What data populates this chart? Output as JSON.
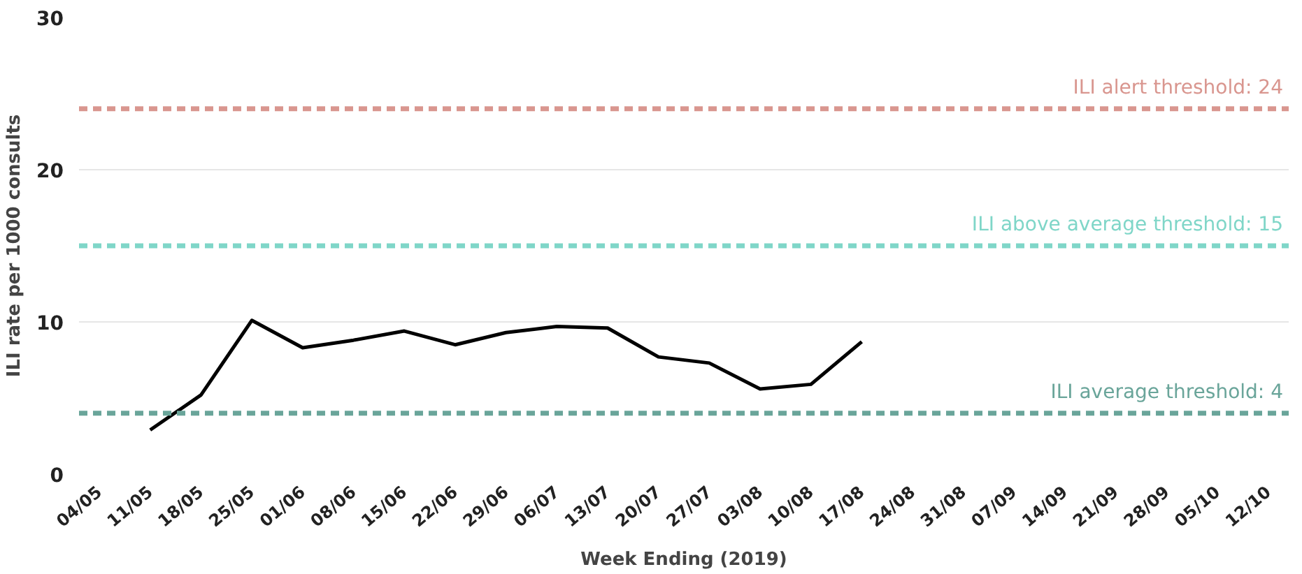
{
  "chart_data": {
    "type": "line",
    "xlabel": "Week Ending (2019)",
    "ylabel": "ILI rate per 1000 consults",
    "categories": [
      "04/05",
      "11/05",
      "18/05",
      "25/05",
      "01/06",
      "08/06",
      "15/06",
      "22/06",
      "29/06",
      "06/07",
      "13/07",
      "20/07",
      "27/07",
      "03/08",
      "10/08",
      "17/08",
      "24/08",
      "31/08",
      "07/09",
      "14/09",
      "21/09",
      "28/09",
      "05/10",
      "12/10"
    ],
    "series": [
      {
        "color": "#000000",
        "values": [
          null,
          2.9,
          5.2,
          10.1,
          8.3,
          8.8,
          9.4,
          8.5,
          9.3,
          9.7,
          9.6,
          7.7,
          7.3,
          5.6,
          5.9,
          8.7,
          null,
          null,
          null,
          null,
          null,
          null,
          null,
          null
        ]
      }
    ],
    "ylim": [
      0,
      30
    ],
    "yticks": [
      0,
      10,
      20,
      30
    ],
    "grid": "y",
    "marker": "none",
    "line_style": "solid",
    "ref_lines": [
      {
        "axis": "y",
        "value": 24,
        "label": "ILI alert threshold: 24",
        "color": "#d9968f",
        "line_style": "dashed"
      },
      {
        "axis": "y",
        "value": 15,
        "label": "ILI above average threshold: 15",
        "color": "#7fd6c8",
        "line_style": "dashed"
      },
      {
        "axis": "y",
        "value": 4,
        "label": "ILI average threshold: 4",
        "color": "#6aa59a",
        "line_style": "dashed"
      }
    ]
  }
}
